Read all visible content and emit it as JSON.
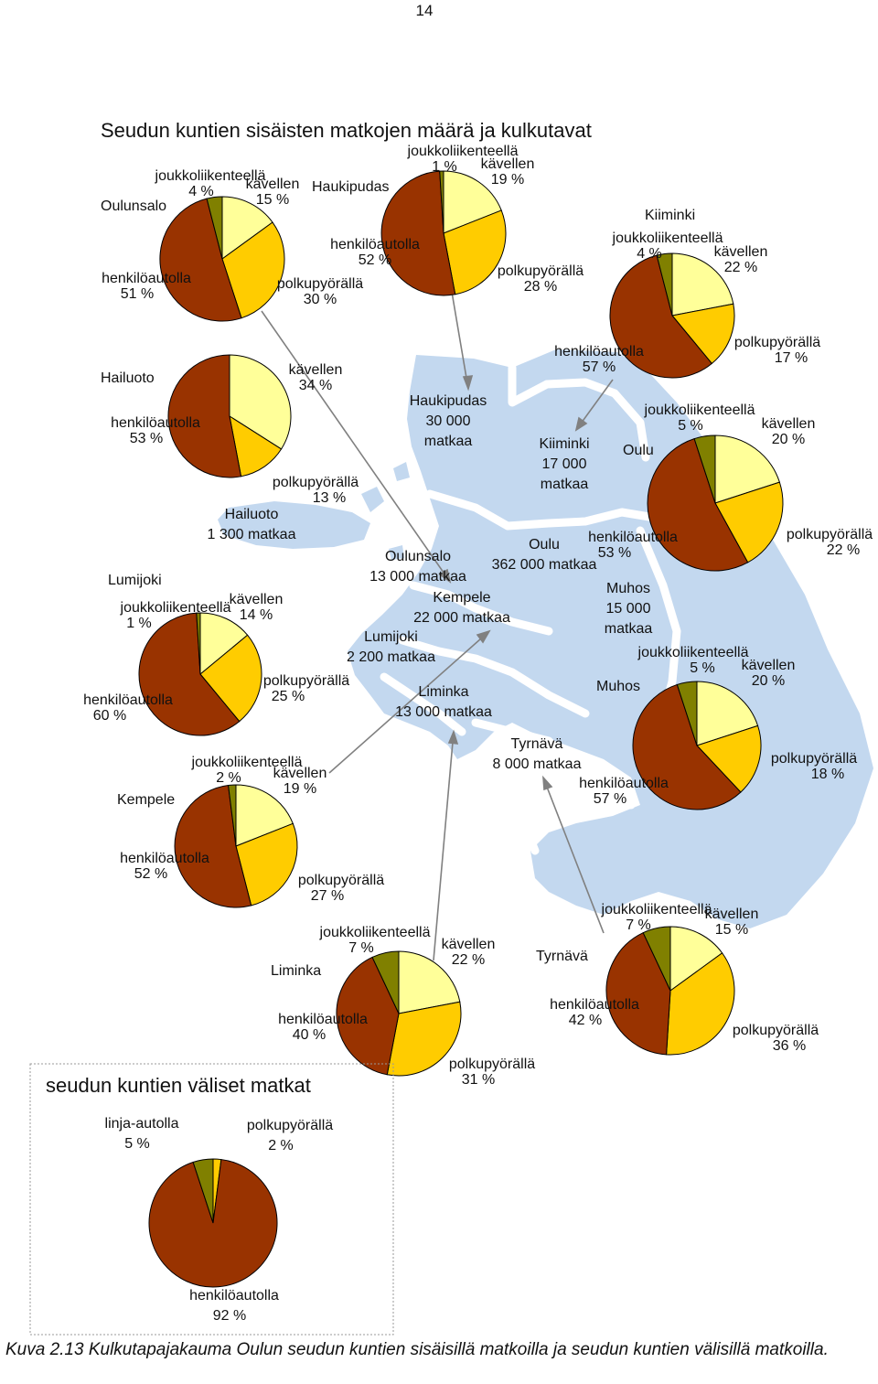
{
  "page_number": "14",
  "title": "Seudun kuntien sisäisten matkojen määrä ja kulkutavat",
  "caption": "Kuva 2.13 Kulkutapajakauma Oulun seudun kuntien sisäisillä matkoilla ja seudun kuntien välisillä matkoilla.",
  "colors": {
    "henkiloautolla": "#993300",
    "polkupyoralla": "#FFCC00",
    "kavellen": "#FFFF99",
    "joukkoliikenteella": "#808000",
    "linja_autolla": "#808000",
    "map_land": "#C3D8EF",
    "leader_line": "#808080"
  },
  "map_labels": [
    {
      "name": "Haukipudas",
      "trips": "30 000",
      "unit": "matkaa"
    },
    {
      "name": "Kiiminki",
      "trips": "17 000",
      "unit": "matkaa"
    },
    {
      "name": "Hailuoto",
      "trips": "1 300 matkaa"
    },
    {
      "name": "Oulunsalo",
      "trips": "13 000 matkaa"
    },
    {
      "name": "Oulu",
      "trips": "362 000 matkaa"
    },
    {
      "name": "Kempele",
      "trips": "22 000 matkaa"
    },
    {
      "name": "Muhos",
      "trips": "15 000",
      "unit": "matkaa"
    },
    {
      "name": "Lumijoki",
      "trips": "2 200 matkaa"
    },
    {
      "name": "Liminka",
      "trips": "13 000 matkaa"
    },
    {
      "name": "Tyrnävä",
      "trips": "8 000 matkaa"
    }
  ],
  "box": {
    "title": "seudun kuntien väliset matkat"
  },
  "chart_data": [
    {
      "type": "pie",
      "title": "Oulunsalo",
      "categories": [
        "kävellen",
        "polkupyörällä",
        "henkilöautolla",
        "joukkoliikenteellä"
      ],
      "values": [
        15,
        30,
        51,
        4
      ],
      "labels": {
        "kavellen": "kävellen",
        "kavellen_value": "15 %",
        "polkupyoralla": "polkupyörällä",
        "polkupyoralla_value": "30 %",
        "henkiloautolla": "henkilöautolla",
        "henkiloautolla_value": "51 %",
        "joukkoliikenteella": "joukkoliikenteellä",
        "joukkoliikenteella_value": "4 %"
      }
    },
    {
      "type": "pie",
      "title": "Haukipudas",
      "categories": [
        "kävellen",
        "polkupyörällä",
        "henkilöautolla",
        "joukkoliikenteellä"
      ],
      "values": [
        19,
        28,
        52,
        1
      ],
      "labels": {
        "kavellen": "kävellen",
        "kavellen_value": "19 %",
        "polkupyoralla": "polkupyörällä",
        "polkupyoralla_value": "28 %",
        "henkiloautolla": "henkilöautolla",
        "henkiloautolla_value": "52 %",
        "joukkoliikenteella": "joukkoliikenteellä",
        "joukkoliikenteella_value": "1 %"
      }
    },
    {
      "type": "pie",
      "title": "Kiiminki",
      "categories": [
        "kävellen",
        "polkupyörällä",
        "henkilöautolla",
        "joukkoliikenteellä"
      ],
      "values": [
        22,
        17,
        57,
        4
      ],
      "labels": {
        "kavellen": "kävellen",
        "kavellen_value": "22 %",
        "polkupyoralla": "polkupyörällä",
        "polkupyoralla_value": "17 %",
        "henkiloautolla": "henkilöautolla",
        "henkiloautolla_value": "57 %",
        "joukkoliikenteella": "joukkoliikenteellä",
        "joukkoliikenteella_value": "4 %"
      }
    },
    {
      "type": "pie",
      "title": "Hailuoto",
      "categories": [
        "kävellen",
        "polkupyörällä",
        "henkilöautolla"
      ],
      "values": [
        34,
        13,
        53
      ],
      "labels": {
        "kavellen": "kävellen",
        "kavellen_value": "34 %",
        "polkupyoralla": "polkupyörällä",
        "polkupyoralla_value": "13 %",
        "henkiloautolla": "henkilöautolla",
        "henkiloautolla_value": "53 %"
      }
    },
    {
      "type": "pie",
      "title": "Oulu",
      "categories": [
        "kävellen",
        "polkupyörällä",
        "henkilöautolla",
        "joukkoliikenteellä"
      ],
      "values": [
        20,
        22,
        53,
        5
      ],
      "labels": {
        "kavellen": "kävellen",
        "kavellen_value": "20 %",
        "polkupyoralla": "polkupyörällä",
        "polkupyoralla_value": "22 %",
        "henkiloautolla": "henkilöautolla",
        "henkiloautolla_value": "53 %",
        "joukkoliikenteella": "joukkoliikenteellä",
        "joukkoliikenteella_value": "5 %"
      }
    },
    {
      "type": "pie",
      "title": "Lumijoki",
      "categories": [
        "kävellen",
        "polkupyörällä",
        "henkilöautolla",
        "joukkoliikenteellä"
      ],
      "values": [
        14,
        25,
        60,
        1
      ],
      "labels": {
        "kavellen": "kävellen",
        "kavellen_value": "14 %",
        "polkupyoralla": "polkupyörällä",
        "polkupyoralla_value": "25 %",
        "henkiloautolla": "henkilöautolla",
        "henkiloautolla_value": "60 %",
        "joukkoliikenteella": "joukkoliikenteellä",
        "joukkoliikenteella_value": "1 %"
      }
    },
    {
      "type": "pie",
      "title": "Muhos",
      "categories": [
        "kävellen",
        "polkupyörällä",
        "henkilöautolla",
        "joukkoliikenteellä"
      ],
      "values": [
        20,
        18,
        57,
        5
      ],
      "labels": {
        "kavellen": "kävellen",
        "kavellen_value": "20 %",
        "polkupyoralla": "polkupyörällä",
        "polkupyoralla_value": "18 %",
        "henkiloautolla": "henkilöautolla",
        "henkiloautolla_value": "57 %",
        "joukkoliikenteella": "joukkoliikenteellä",
        "joukkoliikenteella_value": "5 %"
      }
    },
    {
      "type": "pie",
      "title": "Kempele",
      "categories": [
        "kävellen",
        "polkupyörällä",
        "henkilöautolla",
        "joukkoliikenteellä"
      ],
      "values": [
        19,
        27,
        52,
        2
      ],
      "labels": {
        "kavellen": "kävellen",
        "kavellen_value": "19 %",
        "polkupyoralla": "polkupyörällä",
        "polkupyoralla_value": "27 %",
        "henkiloautolla": "henkilöautolla",
        "henkiloautolla_value": "52 %",
        "joukkoliikenteella": "joukkoliikenteellä",
        "joukkoliikenteella_value": "2 %"
      }
    },
    {
      "type": "pie",
      "title": "Liminka",
      "categories": [
        "kävellen",
        "polkupyörällä",
        "henkilöautolla",
        "joukkoliikenteellä"
      ],
      "values": [
        22,
        31,
        40,
        7
      ],
      "labels": {
        "kavellen": "kävellen",
        "kavellen_value": "22 %",
        "polkupyoralla": "polkupyörällä",
        "polkupyoralla_value": "31 %",
        "henkiloautolla": "henkilöautolla",
        "henkiloautolla_value": "40 %",
        "joukkoliikenteella": "joukkoliikenteellä",
        "joukkoliikenteella_value": "7 %"
      }
    },
    {
      "type": "pie",
      "title": "Tyrnävä",
      "categories": [
        "kävellen",
        "polkupyörällä",
        "henkilöautolla",
        "joukkoliikenteellä"
      ],
      "values": [
        15,
        36,
        42,
        7
      ],
      "labels": {
        "kavellen": "kävellen",
        "kavellen_value": "15 %",
        "polkupyoralla": "polkupyörällä",
        "polkupyoralla_value": "36 %",
        "henkiloautolla": "henkilöautolla",
        "henkiloautolla_value": "42 %",
        "joukkoliikenteella": "joukkoliikenteellä",
        "joukkoliikenteella_value": "7 %"
      }
    },
    {
      "type": "pie",
      "title": "",
      "categories": [
        "polkupyörällä",
        "henkilöautolla",
        "linja-autolla"
      ],
      "values": [
        2,
        92,
        5
      ],
      "labels": {
        "polkupyoralla": "polkupyörällä",
        "polkupyoralla_value": "2 %",
        "henkiloautolla": "henkilöautolla",
        "henkiloautolla_value": "92 %",
        "linja_autolla": "linja-autolla",
        "linja_autolla_value": "5 %"
      }
    }
  ]
}
